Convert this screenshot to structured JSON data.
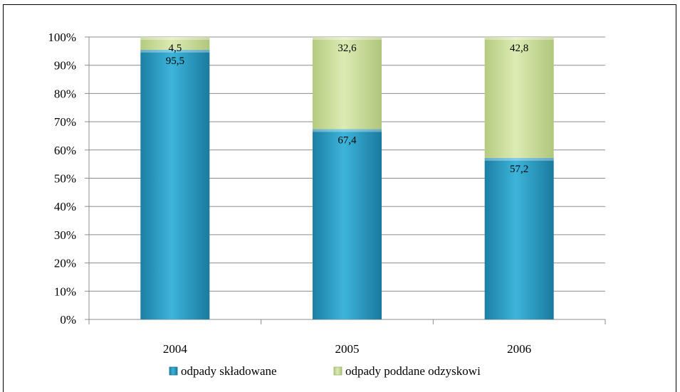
{
  "chart_data": {
    "type": "bar",
    "stacked": true,
    "normalized": true,
    "categories": [
      "2004",
      "2005",
      "2006"
    ],
    "series": [
      {
        "name": "odpady składowane",
        "values": [
          95.5,
          67.4,
          57.2
        ],
        "labels": [
          "95,5",
          "67,4",
          "57,2"
        ],
        "color": "#2e9fc4"
      },
      {
        "name": "odpady poddane odzyskowi",
        "values": [
          4.5,
          32.6,
          42.8
        ],
        "labels": [
          "4,5",
          "32,6",
          "42,8"
        ],
        "color": "#c9dd9a"
      }
    ],
    "yticks": [
      "0%",
      "10%",
      "20%",
      "30%",
      "40%",
      "50%",
      "60%",
      "70%",
      "80%",
      "90%",
      "100%"
    ],
    "ylim": [
      0,
      100
    ],
    "grid": true,
    "legend_position": "bottom"
  }
}
